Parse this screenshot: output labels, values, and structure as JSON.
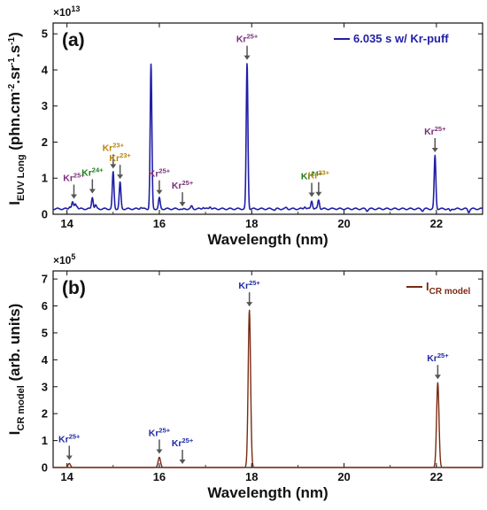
{
  "chart_data": [
    {
      "panel": "(a)",
      "type": "line",
      "multiplier": "×10",
      "multiplier_exp": "13",
      "ylabel_parts": {
        "main": "I",
        "sub": "EUV Long",
        "unit_open": " (phn.cm",
        "sup1": "-2",
        "mid": ".sr",
        "sup2": "-1",
        "mid2": ".s",
        "sup3": "-1",
        "close": ")"
      },
      "xlabel": "Wavelength (nm)",
      "xlim": [
        13.7,
        23.0
      ],
      "ylim": [
        0,
        5.3
      ],
      "xticks": [
        "14",
        "16",
        "18",
        "20",
        "22"
      ],
      "yticks": [
        "0",
        "1",
        "2",
        "3",
        "4",
        "5"
      ],
      "series": [
        {
          "name": "6.035 s w/ Kr-puff",
          "color": "#1f1fa8",
          "baseline": 0.15,
          "peaks": [
            [
              14.06,
              0.22
            ],
            [
              14.12,
              0.33
            ],
            [
              14.18,
              0.28
            ],
            [
              14.22,
              0.22
            ],
            [
              14.55,
              0.48
            ],
            [
              14.62,
              0.25
            ],
            [
              15.0,
              1.17
            ],
            [
              15.15,
              0.88
            ],
            [
              15.6,
              0.2
            ],
            [
              15.82,
              4.15
            ],
            [
              16.0,
              0.45
            ],
            [
              16.5,
              0.12
            ],
            [
              16.7,
              0.22
            ],
            [
              16.95,
              0.2
            ],
            [
              17.1,
              0.22
            ],
            [
              17.3,
              0.15
            ],
            [
              17.9,
              4.18
            ],
            [
              18.5,
              0.12
            ],
            [
              18.75,
              0.18
            ],
            [
              19.15,
              0.22
            ],
            [
              19.3,
              0.38
            ],
            [
              19.45,
              0.4
            ],
            [
              19.8,
              0.16
            ],
            [
              20.5,
              0.1
            ],
            [
              21.7,
              0.1
            ],
            [
              21.97,
              1.62
            ],
            [
              22.3,
              0.08
            ],
            [
              22.7,
              0.06
            ]
          ]
        }
      ],
      "annotations": [
        {
          "ion": "Kr",
          "charge": "25+",
          "x": 14.15,
          "peak": 0.33,
          "color": "#7a2e7a"
        },
        {
          "ion": "Kr",
          "charge": "24+",
          "x": 14.55,
          "peak": 0.48,
          "color": "#1d7a1d"
        },
        {
          "ion": "Kr",
          "charge": "23+",
          "x": 15.0,
          "peak": 1.17,
          "color": "#b8860b"
        },
        {
          "ion": "Kr",
          "charge": "23+",
          "x": 15.15,
          "peak": 0.88,
          "color": "#b8860b"
        },
        {
          "ion": "Kr",
          "charge": "25+",
          "x": 16.0,
          "peak": 0.45,
          "color": "#7a2e7a"
        },
        {
          "ion": "Kr",
          "charge": "25+",
          "x": 16.5,
          "peak": 0.12,
          "color": "#7a2e7a"
        },
        {
          "ion": "Kr",
          "charge": "25+",
          "x": 17.9,
          "peak": 4.18,
          "color": "#7a2e7a"
        },
        {
          "ion": "Kr",
          "charge": "24+",
          "x": 19.3,
          "peak": 0.38,
          "color": "#1d7a1d"
        },
        {
          "ion": "Kr",
          "charge": "23+",
          "x": 19.45,
          "peak": 0.4,
          "color": "#b8860b"
        },
        {
          "ion": "Kr",
          "charge": "25+",
          "x": 21.97,
          "peak": 1.62,
          "color": "#7a2e7a"
        }
      ]
    },
    {
      "panel": "(b)",
      "type": "line",
      "multiplier": "×10",
      "multiplier_exp": "5",
      "ylabel_parts": {
        "main": "I",
        "sub": "CR model",
        "unit": " (arb. units)"
      },
      "xlabel": "Wavelength (nm)",
      "xlim": [
        13.7,
        23.0
      ],
      "ylim": [
        0,
        7.3
      ],
      "xticks": [
        "14",
        "16",
        "18",
        "20",
        "22"
      ],
      "yticks": [
        "0",
        "1",
        "2",
        "3",
        "4",
        "5",
        "6",
        "7"
      ],
      "series": [
        {
          "name": "I",
          "name_sub": "CR model",
          "color": "#7a2a12",
          "baseline": 0.0,
          "peaks": [
            [
              14.05,
              0.15
            ],
            [
              16.0,
              0.38
            ],
            [
              17.95,
              5.85
            ],
            [
              22.03,
              3.15
            ]
          ]
        }
      ],
      "annotations": [
        {
          "ion": "Kr",
          "charge": "25+",
          "x": 14.05,
          "peak": 0.15,
          "color": "#1f2aa0"
        },
        {
          "ion": "Kr",
          "charge": "25+",
          "x": 16.0,
          "peak": 0.38,
          "color": "#1f2aa0"
        },
        {
          "ion": "Kr",
          "charge": "25+",
          "x": 16.5,
          "peak": 0.0,
          "color": "#1f2aa0"
        },
        {
          "ion": "Kr",
          "charge": "25+",
          "x": 17.95,
          "peak": 5.85,
          "color": "#1f2aa0"
        },
        {
          "ion": "Kr",
          "charge": "25+",
          "x": 22.03,
          "peak": 3.15,
          "color": "#1f2aa0"
        }
      ]
    }
  ]
}
